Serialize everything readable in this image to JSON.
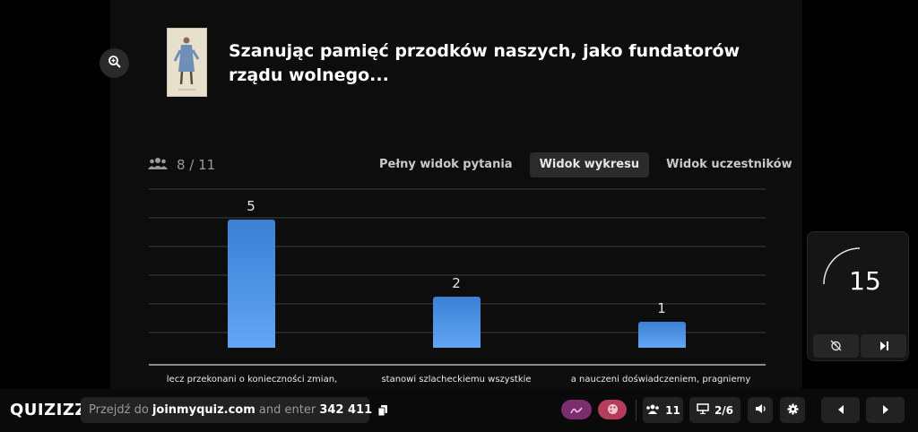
{
  "question": {
    "text": "Szanując pamięć przodków naszych, jako fundatorów rządu wolnego..."
  },
  "responses": {
    "count": "8 / 11"
  },
  "view_tabs": [
    {
      "label": "Pełny widok pytania",
      "active": false
    },
    {
      "label": "Widok wykresu",
      "active": true
    },
    {
      "label": "Widok uczestników",
      "active": false
    }
  ],
  "chart_data": {
    "type": "bar",
    "categories": [
      "lecz przekonani o konieczności zmian,",
      "stanowi szlacheckiemu wszystkie",
      "a nauczeni doświadczeniem, pragniemy"
    ],
    "values": [
      5,
      2,
      1
    ],
    "ylim": [
      0,
      6
    ],
    "grid": true
  },
  "timer": {
    "value": "15"
  },
  "bottom_bar": {
    "logo": "QUIZIZZ",
    "join_prefix": "Przejdź do",
    "join_url": "joinmyquiz.com",
    "join_middle": "and enter",
    "join_code": "342 411",
    "participants": "11",
    "slide_progress": "2/6"
  },
  "colors": {
    "bar": "#4f93e8",
    "pill_purple": "#7a2e6e",
    "pill_red": "#b43c5c"
  },
  "icons": [
    "zoom-in-icon",
    "users-icon",
    "copy-icon",
    "pen-icon",
    "palette-icon",
    "presentation-icon",
    "volume-icon",
    "gear-icon",
    "chevron-left-icon",
    "chevron-right-icon",
    "no-alarm-icon",
    "skip-icon"
  ]
}
